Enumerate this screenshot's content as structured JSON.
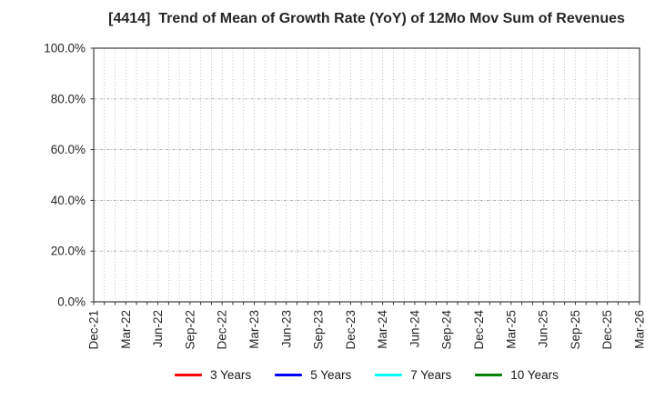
{
  "figure": {
    "background": "#ffffff",
    "axes_border_color": "#2b2b2b",
    "grid_color_vertical": "#b3b3b3",
    "grid_color_horizontal": "#a8a8a8",
    "tick_text_color": "#262626",
    "title_text_color": "#262626"
  },
  "chart_data": {
    "type": "line",
    "title": "[4414]  Trend of Mean of Growth Rate (YoY) of 12Mo Mov Sum of Revenues",
    "xlabel": "",
    "ylabel": "",
    "ylim": [
      0,
      100
    ],
    "y_ticks": [
      0,
      20,
      40,
      60,
      80,
      100
    ],
    "y_tick_labels": [
      "0.0%",
      "20.0%",
      "40.0%",
      "60.0%",
      "80.0%",
      "100.0%"
    ],
    "x_tick_labels": [
      "Dec-21",
      "Mar-22",
      "Jun-22",
      "Sep-22",
      "Dec-22",
      "Mar-23",
      "Jun-23",
      "Sep-23",
      "Dec-23",
      "Mar-24",
      "Jun-24",
      "Sep-24",
      "Dec-24",
      "Mar-25",
      "Jun-25",
      "Sep-25",
      "Dec-25",
      "Mar-26"
    ],
    "x_tick_rotation_deg": 90,
    "x_minor_grid_per_quarter": 3,
    "grid": true,
    "legend_position": "bottom-center",
    "series": [
      {
        "name": "3 Years",
        "color": "#ff0000",
        "values": []
      },
      {
        "name": "5 Years",
        "color": "#0000ff",
        "values": []
      },
      {
        "name": "7 Years",
        "color": "#00ffff",
        "values": []
      },
      {
        "name": "10 Years",
        "color": "#008000",
        "values": []
      }
    ],
    "plot_note": "plot area is empty - no data lines are drawn"
  }
}
